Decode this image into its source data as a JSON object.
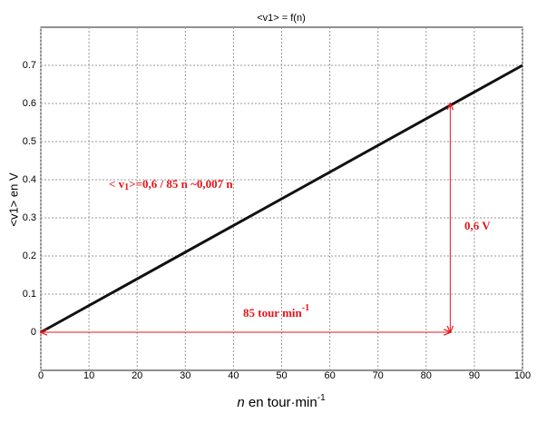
{
  "chart_data": {
    "type": "line",
    "title": "<v1> = f(n)",
    "x_label": {
      "var": "n",
      "text": " en tour·min",
      "sup": "-1"
    },
    "y_label": "<v1> en V",
    "x": [
      0,
      100
    ],
    "series": [
      {
        "color": "#111111",
        "values": [
          0,
          0.7
        ]
      }
    ],
    "xlim": [
      0,
      100
    ],
    "xticks": [
      0,
      10,
      20,
      30,
      40,
      50,
      60,
      70,
      80,
      90,
      100
    ],
    "ylim": [
      -0.1,
      0.8
    ],
    "yticks": [
      0,
      0.1,
      0.2,
      0.3,
      0.4,
      0.5,
      0.6,
      0.7
    ],
    "grid": true,
    "annotation_color": "#e8141a",
    "arrows": [
      {
        "x": [
          0,
          85
        ],
        "y": [
          0,
          0
        ]
      },
      {
        "x": [
          85,
          85
        ],
        "y": [
          0,
          0.6
        ]
      }
    ],
    "equation": [
      "< v",
      "1",
      ">=0,6 / 85 n ~0,007 n"
    ],
    "voltage_label": "0,6 V",
    "speed_label": {
      "text": "85 tour min",
      "sup": "-1"
    }
  }
}
